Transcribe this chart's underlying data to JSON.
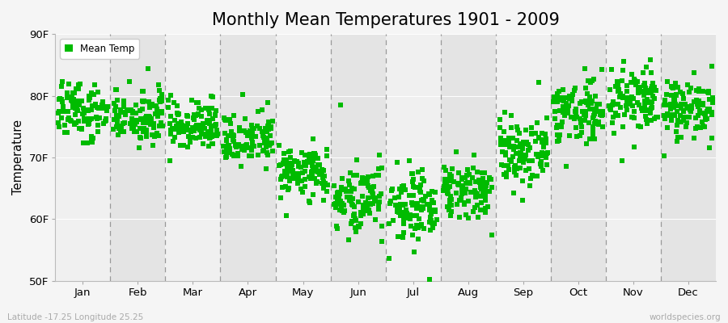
{
  "title": "Monthly Mean Temperatures 1901 - 2009",
  "ylabel": "Temperature",
  "xlabel_labels": [
    "Jan",
    "Feb",
    "Mar",
    "Apr",
    "May",
    "Jun",
    "Jul",
    "Aug",
    "Sep",
    "Oct",
    "Nov",
    "Dec"
  ],
  "ylim": [
    50,
    90
  ],
  "yticks": [
    50,
    60,
    70,
    80,
    90
  ],
  "ytick_labels": [
    "50F",
    "60F",
    "70F",
    "80F",
    "90F"
  ],
  "dot_color": "#00BB00",
  "dot_size": 5,
  "title_fontsize": 15,
  "legend_label": "Mean Temp",
  "footnote_left": "Latitude -17.25 Longitude 25.25",
  "footnote_right": "worldspecies.org",
  "monthly_mean_F": [
    77.5,
    76.5,
    75.2,
    73.0,
    68.0,
    63.0,
    62.0,
    65.0,
    71.0,
    77.0,
    79.5,
    78.0
  ],
  "monthly_std_F": [
    2.2,
    2.0,
    2.0,
    2.0,
    2.2,
    2.5,
    2.5,
    2.2,
    2.5,
    2.5,
    2.5,
    2.2
  ],
  "monthly_extra_spread": [
    1.5,
    1.5,
    1.5,
    1.5,
    2.0,
    2.5,
    2.5,
    2.0,
    2.5,
    3.0,
    3.0,
    2.0
  ],
  "n_years": 109,
  "bg_odd": "#f0f0f0",
  "bg_even": "#e8e8e8",
  "band_colors": [
    "#f2f2f2",
    "#e8e8e8",
    "#f2f2f2",
    "#e8e8e8",
    "#f2f2f2",
    "#e8e8e8",
    "#f2f2f2",
    "#e8e8e8",
    "#f2f2f2",
    "#e8e8e8",
    "#f2f2f2",
    "#e8e8e8"
  ]
}
